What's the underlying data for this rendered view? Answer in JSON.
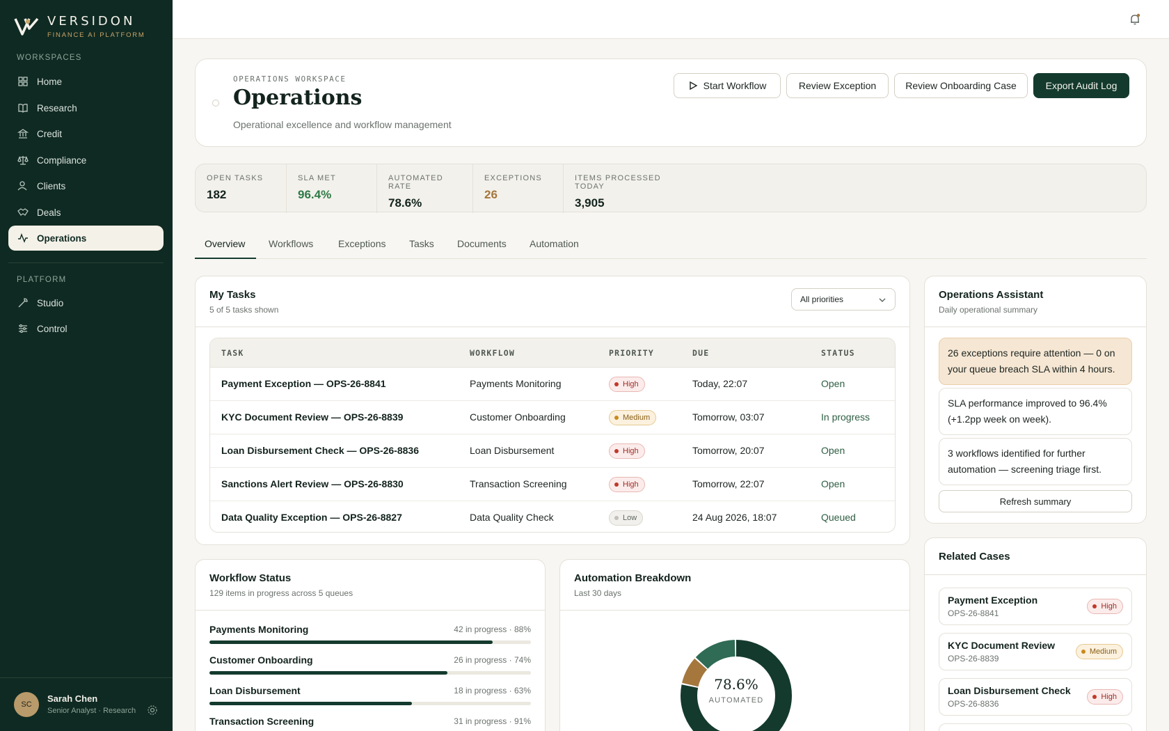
{
  "brand": {
    "name": "VERSIDON",
    "tagline": "FINANCE AI PLATFORM"
  },
  "sidebar": {
    "workspaces_label": "WORKSPACES",
    "platform_label": "PLATFORM",
    "items": [
      {
        "label": "Home",
        "icon": "grid-icon"
      },
      {
        "label": "Research",
        "icon": "book-icon"
      },
      {
        "label": "Credit",
        "icon": "bank-icon"
      },
      {
        "label": "Compliance",
        "icon": "scale-icon"
      },
      {
        "label": "Clients",
        "icon": "user-icon"
      },
      {
        "label": "Deals",
        "icon": "handshake-icon"
      },
      {
        "label": "Operations",
        "icon": "activity-icon",
        "active": true
      }
    ],
    "platform_items": [
      {
        "label": "Studio",
        "icon": "wrench-icon"
      },
      {
        "label": "Control",
        "icon": "sliders-icon"
      }
    ]
  },
  "user": {
    "initials": "SC",
    "name": "Sarah Chen",
    "role": "Senior Analyst · Research"
  },
  "header": {
    "eyebrow": "OPERATIONS WORKSPACE",
    "title": "Operations",
    "subtitle": "Operational excellence and workflow management",
    "actions": [
      "Start Workflow",
      "Review Exception",
      "Review Onboarding Case",
      "Export Audit Log"
    ]
  },
  "kpis": [
    {
      "label": "OPEN TASKS",
      "value": "182"
    },
    {
      "label": "SLA MET",
      "value": "96.4%"
    },
    {
      "label": "AUTOMATED RATE",
      "value": "78.6%"
    },
    {
      "label": "EXCEPTIONS",
      "value": "26"
    },
    {
      "label": "ITEMS PROCESSED TODAY",
      "value": "3,905"
    }
  ],
  "tabs": [
    "Overview",
    "Workflows",
    "Exceptions",
    "Tasks",
    "Documents",
    "Automation"
  ],
  "tasks": {
    "title": "My Tasks",
    "subtitle": "5 of 5 tasks shown",
    "filter": "All priorities",
    "columns": [
      "TASK",
      "WORKFLOW",
      "PRIORITY",
      "DUE",
      "STATUS"
    ],
    "rows": [
      {
        "task": "Payment Exception — OPS-26-8841",
        "workflow": "Payments Monitoring",
        "priority": "High",
        "due": "Today, 22:07",
        "status": "Open"
      },
      {
        "task": "KYC Document Review — OPS-26-8839",
        "workflow": "Customer Onboarding",
        "priority": "Medium",
        "due": "Tomorrow, 03:07",
        "status": "In progress"
      },
      {
        "task": "Loan Disbursement Check — OPS-26-8836",
        "workflow": "Loan Disbursement",
        "priority": "High",
        "due": "Tomorrow, 20:07",
        "status": "Open"
      },
      {
        "task": "Sanctions Alert Review — OPS-26-8830",
        "workflow": "Transaction Screening",
        "priority": "High",
        "due": "Tomorrow, 22:07",
        "status": "Open"
      },
      {
        "task": "Data Quality Exception — OPS-26-8827",
        "workflow": "Data Quality Check",
        "priority": "Low",
        "due": "24 Aug 2026, 18:07",
        "status": "Queued"
      }
    ]
  },
  "assistant": {
    "title": "Operations Assistant",
    "subtitle": "Daily operational summary",
    "insights": [
      "26 exceptions require attention — 0 on your queue breach SLA within 4 hours.",
      "SLA performance improved to 96.4% (+1.2pp week on week).",
      "3 workflows identified for further automation — screening triage first."
    ],
    "refresh_label": "Refresh summary"
  },
  "related": {
    "title": "Related Cases",
    "cases": [
      {
        "title": "Payment Exception",
        "id": "OPS-26-8841",
        "priority": "High"
      },
      {
        "title": "KYC Document Review",
        "id": "OPS-26-8839",
        "priority": "Medium"
      },
      {
        "title": "Loan Disbursement Check",
        "id": "OPS-26-8836",
        "priority": "High"
      }
    ]
  },
  "workflow_status": {
    "title": "Workflow Status",
    "subtitle": "129 items in progress across 5 queues",
    "rows": [
      {
        "name": "Payments Monitoring",
        "meta": "42 in progress · 88%",
        "pct": 88
      },
      {
        "name": "Customer Onboarding",
        "meta": "26 in progress · 74%",
        "pct": 74
      },
      {
        "name": "Loan Disbursement",
        "meta": "18 in progress · 63%",
        "pct": 63
      },
      {
        "name": "Transaction Screening",
        "meta": "31 in progress · 91%",
        "pct": 91
      }
    ]
  },
  "automation": {
    "title": "Automation Breakdown",
    "subtitle": "Last 30 days",
    "center_value": "78.6%",
    "center_label": "AUTOMATED",
    "segments": [
      {
        "value": 78.6,
        "color": "#143a2e"
      },
      {
        "value": 8.4,
        "color": "#a5773d"
      },
      {
        "value": 13.0,
        "color": "#2f6b55"
      }
    ]
  },
  "colors": {
    "sidebar": "#0f2a22",
    "accent": "#143a2e",
    "gold": "#c9a46a",
    "success": "#2e7a46",
    "warning": "#a5773d"
  }
}
